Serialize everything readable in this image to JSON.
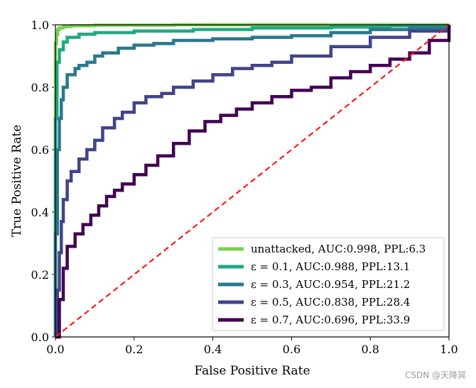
{
  "watermark": "CSDN @天降冥",
  "chart_data": {
    "type": "line",
    "title": "",
    "xlabel": "False Positive Rate",
    "ylabel": "True Positive Rate",
    "xlim": [
      0,
      1
    ],
    "ylim": [
      0,
      1
    ],
    "xticks": [
      "0.0",
      "0.2",
      "0.4",
      "0.6",
      "0.8",
      "1.0"
    ],
    "yticks": [
      "0.0",
      "0.2",
      "0.4",
      "0.6",
      "0.8",
      "1.0"
    ],
    "legend_position": "lower-right",
    "reference_line": {
      "name": "chance",
      "color": "#ff1a1a",
      "style": "dashed",
      "x": [
        0,
        1
      ],
      "y": [
        0,
        1
      ]
    },
    "series": [
      {
        "name": "unattacked, AUC:0.998, PPL:6.3",
        "color": "#7ad151",
        "x": [
          0,
          0,
          0.003,
          0.006,
          0.01,
          0.02,
          0.04,
          0.1,
          0.3,
          0.6,
          1.0
        ],
        "y": [
          0,
          0.94,
          0.97,
          0.985,
          0.99,
          0.994,
          0.997,
          0.999,
          1.0,
          1.0,
          1.0
        ]
      },
      {
        "name": "ε = 0.1, AUC:0.988, PPL:13.1",
        "color": "#22a884",
        "x": [
          0,
          0,
          0.004,
          0.01,
          0.02,
          0.03,
          0.06,
          0.1,
          0.2,
          0.35,
          0.5,
          0.7,
          0.85,
          1.0
        ],
        "y": [
          0,
          0.7,
          0.88,
          0.92,
          0.945,
          0.96,
          0.97,
          0.975,
          0.98,
          0.985,
          0.99,
          0.993,
          0.997,
          1.0
        ]
      },
      {
        "name": "ε = 0.3, AUC:0.954, PPL:21.2",
        "color": "#2a788e",
        "x": [
          0,
          0,
          0.005,
          0.01,
          0.015,
          0.02,
          0.03,
          0.05,
          0.06,
          0.08,
          0.1,
          0.12,
          0.16,
          0.2,
          0.25,
          0.3,
          0.4,
          0.5,
          0.6,
          0.7,
          0.8,
          0.9,
          1.0
        ],
        "y": [
          0,
          0.33,
          0.6,
          0.7,
          0.76,
          0.8,
          0.84,
          0.86,
          0.87,
          0.88,
          0.9,
          0.91,
          0.925,
          0.935,
          0.94,
          0.95,
          0.955,
          0.96,
          0.965,
          0.975,
          0.985,
          0.99,
          1.0
        ]
      },
      {
        "name": "ε = 0.5, AUC:0.838, PPL:28.4",
        "color": "#414487",
        "x": [
          0,
          0.005,
          0.01,
          0.015,
          0.02,
          0.03,
          0.04,
          0.06,
          0.08,
          0.1,
          0.12,
          0.15,
          0.17,
          0.2,
          0.23,
          0.27,
          0.3,
          0.35,
          0.4,
          0.45,
          0.5,
          0.55,
          0.6,
          0.7,
          0.8,
          0.9,
          1.0
        ],
        "y": [
          0,
          0.15,
          0.27,
          0.37,
          0.44,
          0.5,
          0.53,
          0.57,
          0.6,
          0.63,
          0.67,
          0.7,
          0.72,
          0.75,
          0.77,
          0.78,
          0.8,
          0.82,
          0.84,
          0.86,
          0.87,
          0.88,
          0.9,
          0.93,
          0.96,
          0.98,
          1.0
        ]
      },
      {
        "name": "ε = 0.7, AUC:0.696, PPL:33.9",
        "color": "#440154",
        "x": [
          0,
          0.01,
          0.02,
          0.03,
          0.05,
          0.07,
          0.09,
          0.11,
          0.13,
          0.15,
          0.17,
          0.2,
          0.23,
          0.26,
          0.3,
          0.34,
          0.38,
          0.42,
          0.46,
          0.5,
          0.55,
          0.6,
          0.65,
          0.7,
          0.75,
          0.8,
          0.85,
          0.9,
          0.95,
          1.0
        ],
        "y": [
          0,
          0.12,
          0.22,
          0.29,
          0.33,
          0.36,
          0.39,
          0.42,
          0.45,
          0.47,
          0.49,
          0.52,
          0.55,
          0.58,
          0.62,
          0.66,
          0.69,
          0.71,
          0.73,
          0.75,
          0.77,
          0.79,
          0.8,
          0.83,
          0.85,
          0.87,
          0.89,
          0.91,
          0.95,
          1.0
        ]
      }
    ]
  }
}
